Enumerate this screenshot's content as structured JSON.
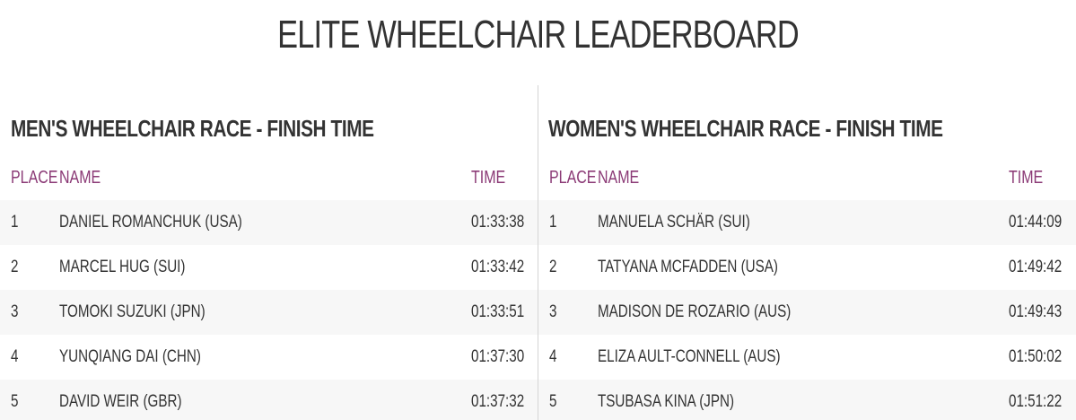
{
  "title": "ELITE WHEELCHAIR LEADERBOARD",
  "men": {
    "heading": "MEN'S WHEELCHAIR RACE - FINISH TIME",
    "columns": {
      "place": "PLACE",
      "name": "NAME",
      "time": "TIME"
    },
    "rows": [
      {
        "place": "1",
        "name": "DANIEL ROMANCHUK (USA)",
        "time": "01:33:38"
      },
      {
        "place": "2",
        "name": "MARCEL HUG (SUI)",
        "time": "01:33:42"
      },
      {
        "place": "3",
        "name": "TOMOKI SUZUKI (JPN)",
        "time": "01:33:51"
      },
      {
        "place": "4",
        "name": "YUNQIANG DAI (CHN)",
        "time": "01:37:30"
      },
      {
        "place": "5",
        "name": "DAVID WEIR (GBR)",
        "time": "01:37:32"
      }
    ]
  },
  "women": {
    "heading": "WOMEN'S WHEELCHAIR RACE - FINISH TIME",
    "columns": {
      "place": "PLACE",
      "name": "NAME",
      "time": "TIME"
    },
    "rows": [
      {
        "place": "1",
        "name": "MANUELA SCHÄR (SUI)",
        "time": "01:44:09"
      },
      {
        "place": "2",
        "name": "TATYANA MCFADDEN (USA)",
        "time": "01:49:42"
      },
      {
        "place": "3",
        "name": "MADISON DE ROZARIO (AUS)",
        "time": "01:49:43"
      },
      {
        "place": "4",
        "name": "ELIZA AULT-CONNELL (AUS)",
        "time": "01:50:02"
      },
      {
        "place": "5",
        "name": "TSUBASA KINA (JPN)",
        "time": "01:51:22"
      }
    ]
  },
  "colors": {
    "header_accent": "#8b3a76",
    "text": "#333333",
    "row_shade": "#f7f7f7",
    "divider": "#d4d4d4"
  }
}
